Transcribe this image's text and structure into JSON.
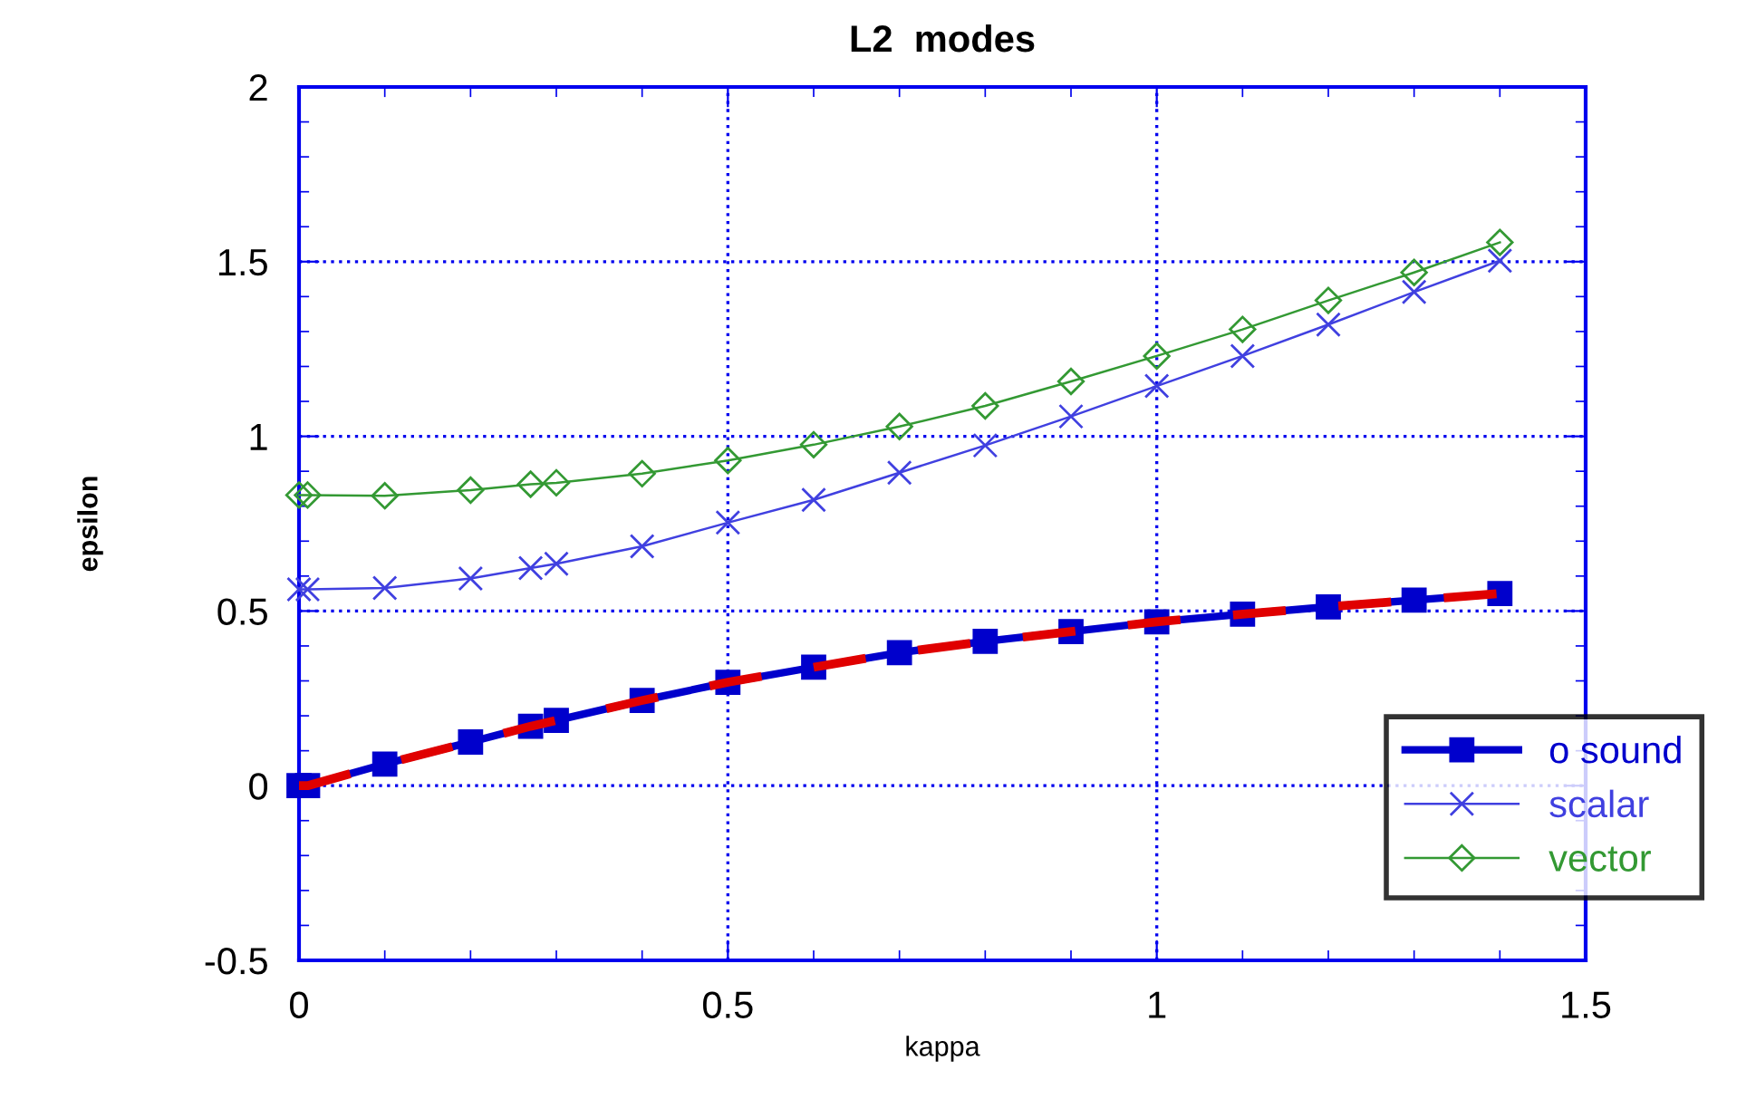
{
  "chart_data": {
    "type": "line",
    "title": "L2  modes",
    "xlabel": "kappa",
    "ylabel": "epsilon",
    "x": [
      0,
      0.01,
      0.1,
      0.2,
      0.27,
      0.3,
      0.4,
      0.5,
      0.6,
      0.7,
      0.8,
      0.9,
      1.0,
      1.1,
      1.2,
      1.3,
      1.4
    ],
    "series": [
      {
        "color": "#e00000",
        "marker": "none",
        "line_style": "dashed",
        "values": [
          0,
          0.0,
          0.062,
          0.125,
          0.17,
          0.187,
          0.244,
          0.296,
          0.339,
          0.381,
          0.413,
          0.441,
          0.469,
          0.491,
          0.512,
          0.531,
          0.55
        ]
      },
      {
        "name": "o sound",
        "color": "#0000cc",
        "marker": "square",
        "line_style": "solid",
        "values": [
          0,
          0.0,
          0.062,
          0.125,
          0.17,
          0.187,
          0.244,
          0.296,
          0.339,
          0.381,
          0.413,
          0.441,
          0.469,
          0.491,
          0.512,
          0.531,
          0.55
        ]
      },
      {
        "name": "scalar",
        "color": "#4040e0",
        "marker": "cross",
        "line_style": "solid",
        "values": [
          0.562,
          0.562,
          0.566,
          0.593,
          0.623,
          0.635,
          0.685,
          0.753,
          0.818,
          0.896,
          0.974,
          1.057,
          1.144,
          1.23,
          1.32,
          1.413,
          1.503
        ]
      },
      {
        "name": "vector",
        "color": "#339933",
        "marker": "diamond",
        "line_style": "solid",
        "values": [
          0.832,
          0.832,
          0.83,
          0.846,
          0.863,
          0.867,
          0.893,
          0.931,
          0.976,
          1.028,
          1.087,
          1.157,
          1.23,
          1.306,
          1.389,
          1.469,
          1.555
        ]
      }
    ],
    "xlim": [
      0,
      1.5
    ],
    "xticks": [
      0,
      0.5,
      1,
      1.5
    ],
    "ylim": [
      -0.5,
      2
    ],
    "yticks": [
      -0.5,
      0,
      0.5,
      1,
      1.5,
      2
    ],
    "grid": true,
    "legend": "bottom right"
  }
}
